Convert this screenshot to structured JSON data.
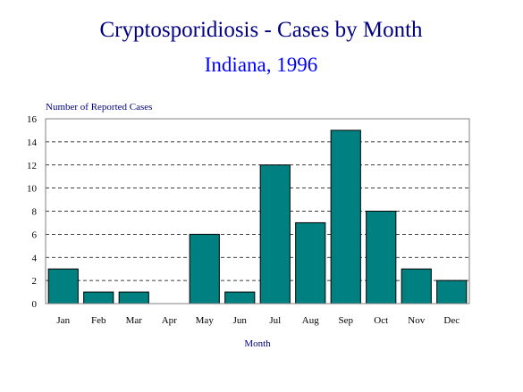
{
  "chart_data": {
    "type": "bar",
    "title": "Cryptosporidiosis - Cases by Month",
    "subtitle": "Indiana, 1996",
    "xlabel": "Month",
    "ylabel": "Number of Reported Cases",
    "categories": [
      "Jan",
      "Feb",
      "Mar",
      "Apr",
      "May",
      "Jun",
      "Jul",
      "Aug",
      "Sep",
      "Oct",
      "Nov",
      "Dec"
    ],
    "values": [
      3,
      1,
      1,
      0,
      6,
      1,
      12,
      7,
      15,
      8,
      3,
      2
    ],
    "ylim": [
      0,
      16
    ],
    "yticks": [
      "0",
      "2",
      "4",
      "6",
      "8",
      "10",
      "12",
      "14",
      "16"
    ],
    "grid": "horizontal dashed",
    "bar_color": "#008080",
    "title_color": "#000080",
    "subtitle_color": "#0000ff"
  }
}
